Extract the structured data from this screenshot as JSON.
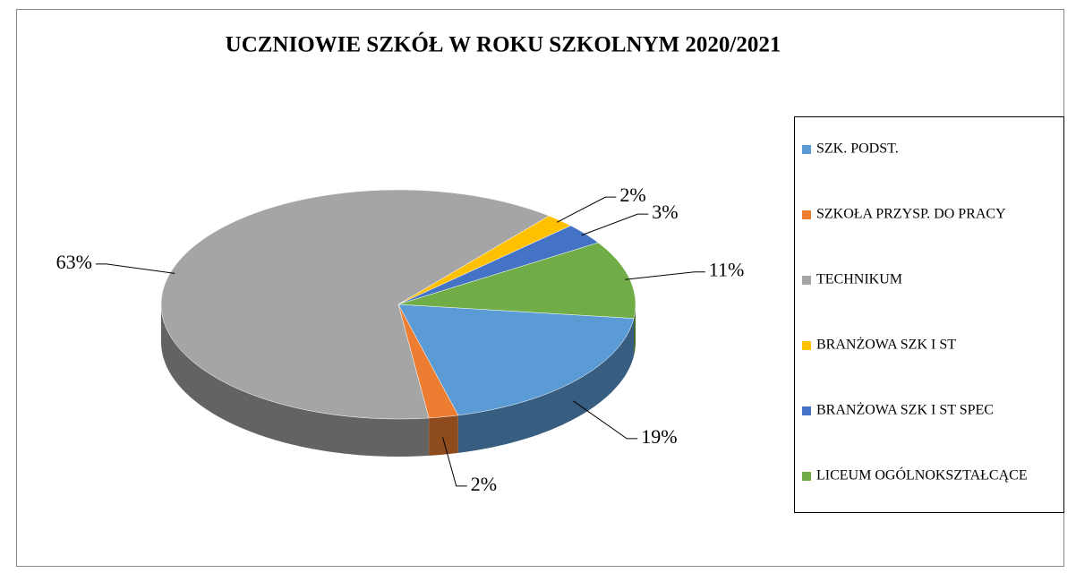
{
  "chart_data": {
    "type": "pie",
    "title": "UCZNIOWIE SZKÓŁ W ROKU SZKOLNYM 2020/2021",
    "categories": [
      "SZK. PODST.",
      "SZKOŁA PRZYSP. DO PRACY",
      "TECHNIKUM",
      "BRANŻOWA SZK I ST",
      "BRANŻOWA SZK I ST SPEC",
      "LICEUM OGÓLNOKSZTAŁCĄCE"
    ],
    "values": [
      19,
      2,
      63,
      2,
      3,
      11
    ],
    "value_labels": [
      "19%",
      "2%",
      "63%",
      "2%",
      "3%",
      "11%"
    ],
    "colors": [
      "#5b9bd5",
      "#ed7d31",
      "#a5a5a5",
      "#ffc000",
      "#4472c4",
      "#70ad47"
    ],
    "legend": "right"
  }
}
